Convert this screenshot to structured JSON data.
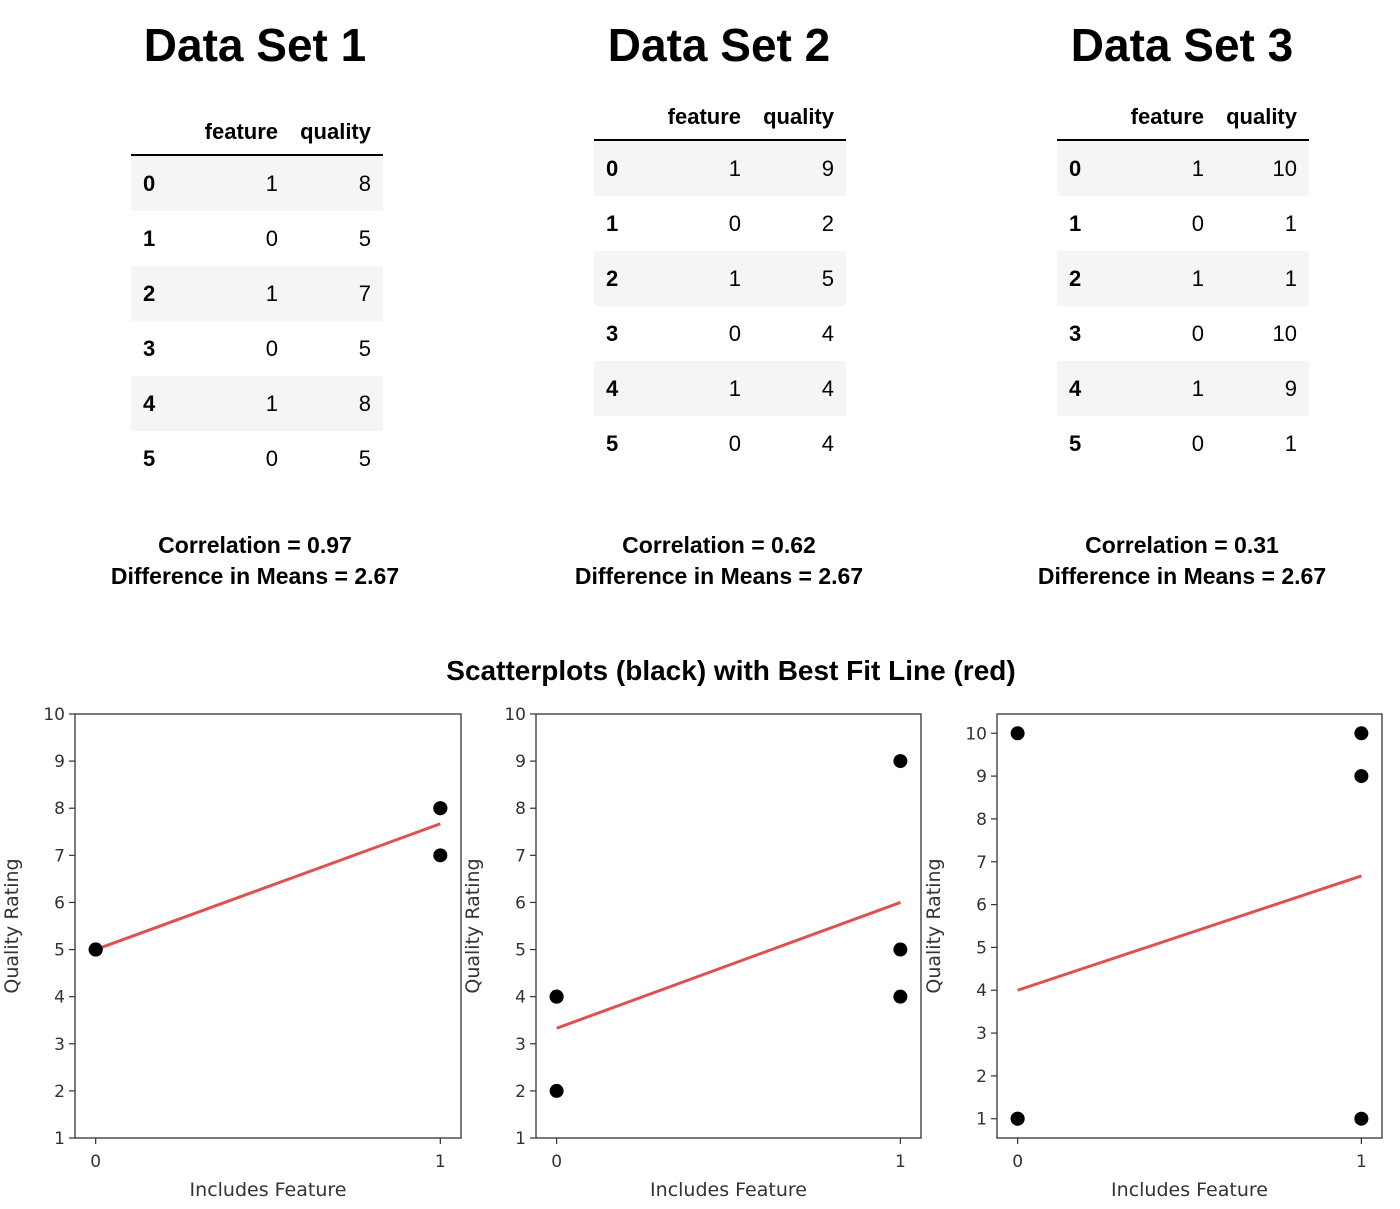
{
  "datasets": [
    {
      "title": "Data Set 1",
      "columns": [
        "feature",
        "quality"
      ],
      "rows": [
        {
          "index": "0",
          "feature": "1",
          "quality": "8"
        },
        {
          "index": "1",
          "feature": "0",
          "quality": "5"
        },
        {
          "index": "2",
          "feature": "1",
          "quality": "7"
        },
        {
          "index": "3",
          "feature": "0",
          "quality": "5"
        },
        {
          "index": "4",
          "feature": "1",
          "quality": "8"
        },
        {
          "index": "5",
          "feature": "0",
          "quality": "5"
        }
      ],
      "correlation": "Correlation = 0.97",
      "difference": "Difference in Means = 2.67"
    },
    {
      "title": "Data Set 2",
      "columns": [
        "feature",
        "quality"
      ],
      "rows": [
        {
          "index": "0",
          "feature": "1",
          "quality": "9"
        },
        {
          "index": "1",
          "feature": "0",
          "quality": "2"
        },
        {
          "index": "2",
          "feature": "1",
          "quality": "5"
        },
        {
          "index": "3",
          "feature": "0",
          "quality": "4"
        },
        {
          "index": "4",
          "feature": "1",
          "quality": "4"
        },
        {
          "index": "5",
          "feature": "0",
          "quality": "4"
        }
      ],
      "correlation": "Correlation = 0.62",
      "difference": "Difference in Means = 2.67"
    },
    {
      "title": "Data Set 3",
      "columns": [
        "feature",
        "quality"
      ],
      "rows": [
        {
          "index": "0",
          "feature": "1",
          "quality": "10"
        },
        {
          "index": "1",
          "feature": "0",
          "quality": "1"
        },
        {
          "index": "2",
          "feature": "1",
          "quality": "1"
        },
        {
          "index": "3",
          "feature": "0",
          "quality": "10"
        },
        {
          "index": "4",
          "feature": "1",
          "quality": "9"
        },
        {
          "index": "5",
          "feature": "0",
          "quality": "1"
        }
      ],
      "correlation": "Correlation = 0.31",
      "difference": "Difference in Means = 2.67"
    }
  ],
  "plots_title": "Scatterplots (black) with Best Fit Line (red)",
  "colors": {
    "points": "#000000",
    "fit_line": "#e05050",
    "axis": "#333333"
  },
  "chart_data": [
    {
      "type": "scatter",
      "xlabel": "Includes Feature",
      "ylabel": "Quality Rating",
      "xticks": [
        0,
        1
      ],
      "yticks": [
        1,
        2,
        3,
        4,
        5,
        6,
        7,
        8,
        9,
        10
      ],
      "ylim": [
        1,
        10
      ],
      "points": [
        [
          1,
          8
        ],
        [
          0,
          5
        ],
        [
          1,
          7
        ],
        [
          0,
          5
        ],
        [
          1,
          8
        ],
        [
          0,
          5
        ]
      ],
      "fit_line": [
        [
          0,
          5.0
        ],
        [
          1,
          7.67
        ]
      ]
    },
    {
      "type": "scatter",
      "xlabel": "Includes Feature",
      "ylabel": "Quality Rating",
      "xticks": [
        0,
        1
      ],
      "yticks": [
        1,
        2,
        3,
        4,
        5,
        6,
        7,
        8,
        9,
        10
      ],
      "ylim": [
        1,
        10
      ],
      "points": [
        [
          1,
          9
        ],
        [
          0,
          2
        ],
        [
          1,
          5
        ],
        [
          0,
          4
        ],
        [
          1,
          4
        ],
        [
          0,
          4
        ]
      ],
      "fit_line": [
        [
          0,
          3.33
        ],
        [
          1,
          6.0
        ]
      ]
    },
    {
      "type": "scatter",
      "xlabel": "Includes Feature",
      "ylabel": "Quality Rating",
      "xticks": [
        0,
        1
      ],
      "yticks": [
        1,
        2,
        3,
        4,
        5,
        6,
        7,
        8,
        9,
        10
      ],
      "ylim": [
        0.55,
        10.45
      ],
      "points": [
        [
          1,
          10
        ],
        [
          0,
          1
        ],
        [
          1,
          1
        ],
        [
          0,
          10
        ],
        [
          1,
          9
        ],
        [
          0,
          1
        ]
      ],
      "fit_line": [
        [
          0,
          4.0
        ],
        [
          1,
          6.67
        ]
      ]
    }
  ]
}
